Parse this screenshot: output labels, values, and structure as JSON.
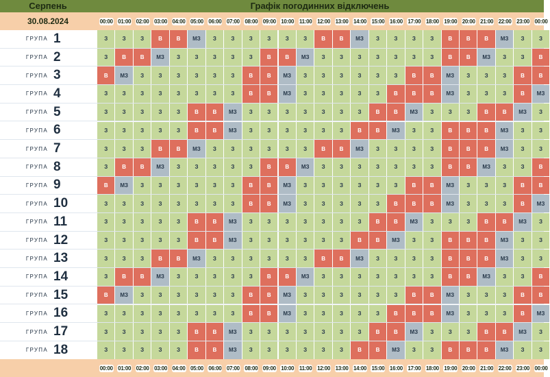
{
  "header": {
    "month": "Серпень",
    "title": "Графік погодинних відключень",
    "date": "30.08.2024"
  },
  "timeline": [
    "00:00",
    "01:00",
    "02:00",
    "03:00",
    "04:00",
    "05:00",
    "06:00",
    "07:00",
    "08:00",
    "09:00",
    "10:00",
    "11:00",
    "12:00",
    "13:00",
    "14:00",
    "15:00",
    "16:00",
    "17:00",
    "18:00",
    "19:00",
    "20:00",
    "21:00",
    "22:00",
    "23:00",
    "00:00"
  ],
  "group_word": "ГРУПА",
  "status_labels": {
    "z": "З",
    "v": "В",
    "m": "МЗ"
  },
  "colors": {
    "on": "#c5d89b",
    "off": "#de6f5d",
    "maybe": "#afbcc6",
    "title_bar": "#6f8a3e",
    "header_bar": "#f7cfa9"
  },
  "groups": [
    {
      "number": "1",
      "hours": [
        "z",
        "z",
        "z",
        "v",
        "v",
        "m",
        "z",
        "z",
        "z",
        "z",
        "z",
        "z",
        "v",
        "v",
        "m",
        "z",
        "z",
        "z",
        "z",
        "v",
        "v",
        "v",
        "m",
        "z",
        "z"
      ]
    },
    {
      "number": "2",
      "hours": [
        "z",
        "v",
        "v",
        "m",
        "z",
        "z",
        "z",
        "z",
        "z",
        "v",
        "v",
        "m",
        "z",
        "z",
        "z",
        "z",
        "z",
        "z",
        "z",
        "v",
        "v",
        "m",
        "z",
        "z",
        "v"
      ]
    },
    {
      "number": "3",
      "hours": [
        "v",
        "m",
        "z",
        "z",
        "z",
        "z",
        "z",
        "z",
        "v",
        "v",
        "m",
        "z",
        "z",
        "z",
        "z",
        "z",
        "z",
        "v",
        "v",
        "m",
        "z",
        "z",
        "z",
        "v",
        "v"
      ]
    },
    {
      "number": "4",
      "hours": [
        "z",
        "z",
        "z",
        "z",
        "z",
        "z",
        "z",
        "z",
        "v",
        "v",
        "m",
        "z",
        "z",
        "z",
        "z",
        "z",
        "v",
        "v",
        "v",
        "m",
        "z",
        "z",
        "z",
        "v",
        "m"
      ]
    },
    {
      "number": "5",
      "hours": [
        "z",
        "z",
        "z",
        "z",
        "z",
        "v",
        "v",
        "m",
        "z",
        "z",
        "z",
        "z",
        "z",
        "z",
        "z",
        "v",
        "v",
        "m",
        "z",
        "z",
        "z",
        "v",
        "v",
        "m",
        "z"
      ]
    },
    {
      "number": "6",
      "hours": [
        "z",
        "z",
        "z",
        "z",
        "z",
        "v",
        "v",
        "m",
        "z",
        "z",
        "z",
        "z",
        "z",
        "z",
        "v",
        "v",
        "m",
        "z",
        "z",
        "v",
        "v",
        "v",
        "m",
        "z",
        "z"
      ]
    },
    {
      "number": "7",
      "hours": [
        "z",
        "z",
        "z",
        "v",
        "v",
        "m",
        "z",
        "z",
        "z",
        "z",
        "z",
        "z",
        "v",
        "v",
        "m",
        "z",
        "z",
        "z",
        "z",
        "v",
        "v",
        "v",
        "m",
        "z",
        "z"
      ]
    },
    {
      "number": "8",
      "hours": [
        "z",
        "v",
        "v",
        "m",
        "z",
        "z",
        "z",
        "z",
        "z",
        "v",
        "v",
        "m",
        "z",
        "z",
        "z",
        "z",
        "z",
        "z",
        "z",
        "v",
        "v",
        "m",
        "z",
        "z",
        "v"
      ]
    },
    {
      "number": "9",
      "hours": [
        "v",
        "m",
        "z",
        "z",
        "z",
        "z",
        "z",
        "z",
        "v",
        "v",
        "m",
        "z",
        "z",
        "z",
        "z",
        "z",
        "z",
        "v",
        "v",
        "m",
        "z",
        "z",
        "z",
        "v",
        "v"
      ]
    },
    {
      "number": "10",
      "hours": [
        "z",
        "z",
        "z",
        "z",
        "z",
        "z",
        "z",
        "z",
        "v",
        "v",
        "m",
        "z",
        "z",
        "z",
        "z",
        "z",
        "v",
        "v",
        "v",
        "m",
        "z",
        "z",
        "z",
        "v",
        "m"
      ]
    },
    {
      "number": "11",
      "hours": [
        "z",
        "z",
        "z",
        "z",
        "z",
        "v",
        "v",
        "m",
        "z",
        "z",
        "z",
        "z",
        "z",
        "z",
        "z",
        "v",
        "v",
        "m",
        "z",
        "z",
        "z",
        "v",
        "v",
        "m",
        "z"
      ]
    },
    {
      "number": "12",
      "hours": [
        "z",
        "z",
        "z",
        "z",
        "z",
        "v",
        "v",
        "m",
        "z",
        "z",
        "z",
        "z",
        "z",
        "z",
        "v",
        "v",
        "m",
        "z",
        "z",
        "v",
        "v",
        "v",
        "m",
        "z",
        "z"
      ]
    },
    {
      "number": "13",
      "hours": [
        "z",
        "z",
        "z",
        "v",
        "v",
        "m",
        "z",
        "z",
        "z",
        "z",
        "z",
        "z",
        "v",
        "v",
        "m",
        "z",
        "z",
        "z",
        "z",
        "v",
        "v",
        "v",
        "m",
        "z",
        "z"
      ]
    },
    {
      "number": "14",
      "hours": [
        "z",
        "v",
        "v",
        "m",
        "z",
        "z",
        "z",
        "z",
        "z",
        "v",
        "v",
        "m",
        "z",
        "z",
        "z",
        "z",
        "z",
        "z",
        "z",
        "v",
        "v",
        "m",
        "z",
        "z",
        "v"
      ]
    },
    {
      "number": "15",
      "hours": [
        "v",
        "m",
        "z",
        "z",
        "z",
        "z",
        "z",
        "z",
        "v",
        "v",
        "m",
        "z",
        "z",
        "z",
        "z",
        "z",
        "z",
        "v",
        "v",
        "m",
        "z",
        "z",
        "z",
        "v",
        "v"
      ]
    },
    {
      "number": "16",
      "hours": [
        "z",
        "z",
        "z",
        "z",
        "z",
        "z",
        "z",
        "z",
        "v",
        "v",
        "m",
        "z",
        "z",
        "z",
        "z",
        "z",
        "v",
        "v",
        "v",
        "m",
        "z",
        "z",
        "z",
        "v",
        "m"
      ]
    },
    {
      "number": "17",
      "hours": [
        "z",
        "z",
        "z",
        "z",
        "z",
        "v",
        "v",
        "m",
        "z",
        "z",
        "z",
        "z",
        "z",
        "z",
        "z",
        "v",
        "v",
        "m",
        "z",
        "z",
        "z",
        "v",
        "v",
        "m",
        "z"
      ]
    },
    {
      "number": "18",
      "hours": [
        "z",
        "z",
        "z",
        "z",
        "z",
        "v",
        "v",
        "m",
        "z",
        "z",
        "z",
        "z",
        "z",
        "z",
        "v",
        "v",
        "m",
        "z",
        "z",
        "v",
        "v",
        "v",
        "m",
        "z",
        "z"
      ]
    }
  ]
}
